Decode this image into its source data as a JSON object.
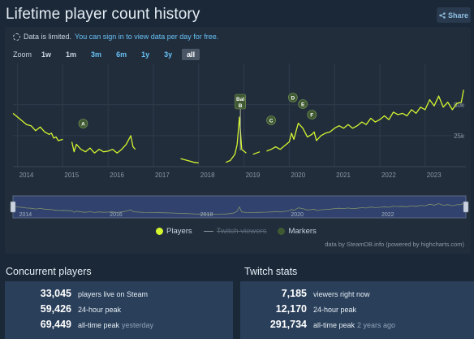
{
  "page": {
    "title": "Lifetime player count history",
    "share_label": "Share"
  },
  "notice": {
    "prefix": "Data is limited.",
    "link": "You can sign in to view data per day for free."
  },
  "zoom": {
    "label": "Zoom",
    "options": [
      {
        "label": "1w",
        "style": "plain"
      },
      {
        "label": "1m",
        "style": "plain"
      },
      {
        "label": "3m",
        "style": "link"
      },
      {
        "label": "6m",
        "style": "link"
      },
      {
        "label": "1y",
        "style": "link"
      },
      {
        "label": "3y",
        "style": "link"
      },
      {
        "label": "all",
        "style": "active"
      }
    ]
  },
  "colors": {
    "players": "#d4f62f",
    "twitch": "#8f98a0",
    "markers": "#3f5a32",
    "navigator_fill": "#364a7d",
    "grid": "#2f3b4b",
    "axis_text": "#8b98a5"
  },
  "legend": {
    "players": "Players",
    "twitch": "Twitch viewers",
    "markers": "Markers"
  },
  "credits": "data by SteamDB.info (powered by highcharts.com)",
  "chart_data": {
    "type": "line",
    "x_ticks": [
      "2014",
      "2015",
      "2016",
      "2017",
      "2018",
      "2019",
      "2020",
      "2021",
      "2022",
      "2023"
    ],
    "y_ticks": [
      "25k",
      "50k"
    ],
    "ylim": [
      0,
      80000
    ],
    "xlim": [
      2013.9,
      2023.9
    ],
    "legend_position": "bottom",
    "series": [
      {
        "name": "Players",
        "points": [
          [
            2013.9,
            43000
          ],
          [
            2014.0,
            40000
          ],
          [
            2014.1,
            37000
          ],
          [
            2014.2,
            34000
          ],
          [
            2014.3,
            33000
          ],
          [
            2014.4,
            29000
          ],
          [
            2014.5,
            32000
          ],
          [
            2014.6,
            28000
          ],
          [
            2014.7,
            26000
          ],
          [
            2014.75,
            27000
          ],
          [
            2014.8,
            23000
          ],
          [
            2014.85,
            24000
          ],
          [
            2014.9,
            21000
          ],
          [
            2015.0,
            22000
          ],
          [
            2015.2,
            20000
          ],
          [
            2015.25,
            12000
          ],
          [
            2015.3,
            18000
          ],
          [
            2015.4,
            14000
          ],
          [
            2015.5,
            12000
          ],
          [
            2015.6,
            15000
          ],
          [
            2015.7,
            11000
          ],
          [
            2015.8,
            14000
          ],
          [
            2015.9,
            12000
          ],
          [
            2016.0,
            12500
          ],
          [
            2016.1,
            14000
          ],
          [
            2016.2,
            11000
          ],
          [
            2016.3,
            14000
          ],
          [
            2016.4,
            18000
          ],
          [
            2016.5,
            25000
          ],
          [
            2016.55,
            16000
          ],
          [
            2016.6,
            14000
          ],
          [
            2016.8,
            11000
          ],
          [
            2017.0,
            10500
          ],
          [
            2017.2,
            9500
          ],
          [
            2017.4,
            8500
          ],
          [
            2017.6,
            6500
          ],
          [
            2017.7,
            5500
          ],
          [
            2017.8,
            4500
          ],
          [
            2017.9,
            3500
          ],
          [
            2018.0,
            3000
          ],
          [
            2018.2,
            3000
          ],
          [
            2018.4,
            2500
          ],
          [
            2018.6,
            3500
          ],
          [
            2018.7,
            5000
          ],
          [
            2018.8,
            10000
          ],
          [
            2018.85,
            18000
          ],
          [
            2018.9,
            40000
          ],
          [
            2018.95,
            14000
          ],
          [
            2019.05,
            11000
          ],
          [
            2019.2,
            10000
          ],
          [
            2019.35,
            12000
          ],
          [
            2019.5,
            12500
          ],
          [
            2019.6,
            14000
          ],
          [
            2019.7,
            16000
          ],
          [
            2019.8,
            14000
          ],
          [
            2019.9,
            17000
          ],
          [
            2020.0,
            20000
          ],
          [
            2020.05,
            27000
          ],
          [
            2020.1,
            22000
          ],
          [
            2020.2,
            35000
          ],
          [
            2020.3,
            31000
          ],
          [
            2020.4,
            24000
          ],
          [
            2020.5,
            26000
          ],
          [
            2020.55,
            28000
          ],
          [
            2020.6,
            21000
          ],
          [
            2020.7,
            25000
          ],
          [
            2020.8,
            27000
          ],
          [
            2020.9,
            28000
          ],
          [
            2021.0,
            31000
          ],
          [
            2021.1,
            33000
          ],
          [
            2021.2,
            31000
          ],
          [
            2021.3,
            34000
          ],
          [
            2021.4,
            31000
          ],
          [
            2021.5,
            33000
          ],
          [
            2021.6,
            36000
          ],
          [
            2021.7,
            34000
          ],
          [
            2021.8,
            39000
          ],
          [
            2021.9,
            36000
          ],
          [
            2022.0,
            38000
          ],
          [
            2022.1,
            41000
          ],
          [
            2022.2,
            38000
          ],
          [
            2022.3,
            44000
          ],
          [
            2022.4,
            42000
          ],
          [
            2022.5,
            43000
          ],
          [
            2022.6,
            41000
          ],
          [
            2022.7,
            46000
          ],
          [
            2022.8,
            43000
          ],
          [
            2022.9,
            48000
          ],
          [
            2023.0,
            46000
          ],
          [
            2023.1,
            54000
          ],
          [
            2023.2,
            49000
          ],
          [
            2023.3,
            57000
          ],
          [
            2023.4,
            48000
          ],
          [
            2023.5,
            52000
          ],
          [
            2023.6,
            46000
          ],
          [
            2023.7,
            51000
          ],
          [
            2023.8,
            52000
          ],
          [
            2023.85,
            62000
          ]
        ]
      },
      {
        "name": "Twitch viewers",
        "visible": false
      }
    ],
    "markers": [
      {
        "label": "A",
        "x": 2015.45
      },
      {
        "label": "Bal\nB",
        "x": 2018.92
      },
      {
        "label": "C",
        "x": 2019.6
      },
      {
        "label": "D",
        "x": 2020.08
      },
      {
        "label": "E",
        "x": 2020.3
      },
      {
        "label": "F",
        "x": 2020.5
      }
    ],
    "navigator": {
      "x_ticks": [
        "2014",
        "2016",
        "2018",
        "2020",
        "2022"
      ]
    }
  },
  "concurrent": {
    "title": "Concurrent players",
    "rows": [
      {
        "value": "33,045",
        "label": "players live on Steam",
        "sub": ""
      },
      {
        "value": "59,426",
        "label": "24-hour peak",
        "sub": ""
      },
      {
        "value": "69,449",
        "label": "all-time peak",
        "sub": "yesterday"
      }
    ]
  },
  "twitch": {
    "title": "Twitch stats",
    "rows": [
      {
        "value": "7,185",
        "label": "viewers right now",
        "sub": ""
      },
      {
        "value": "12,170",
        "label": "24-hour peak",
        "sub": ""
      },
      {
        "value": "291,734",
        "label": "all-time peak",
        "sub": "2 years ago"
      }
    ]
  }
}
